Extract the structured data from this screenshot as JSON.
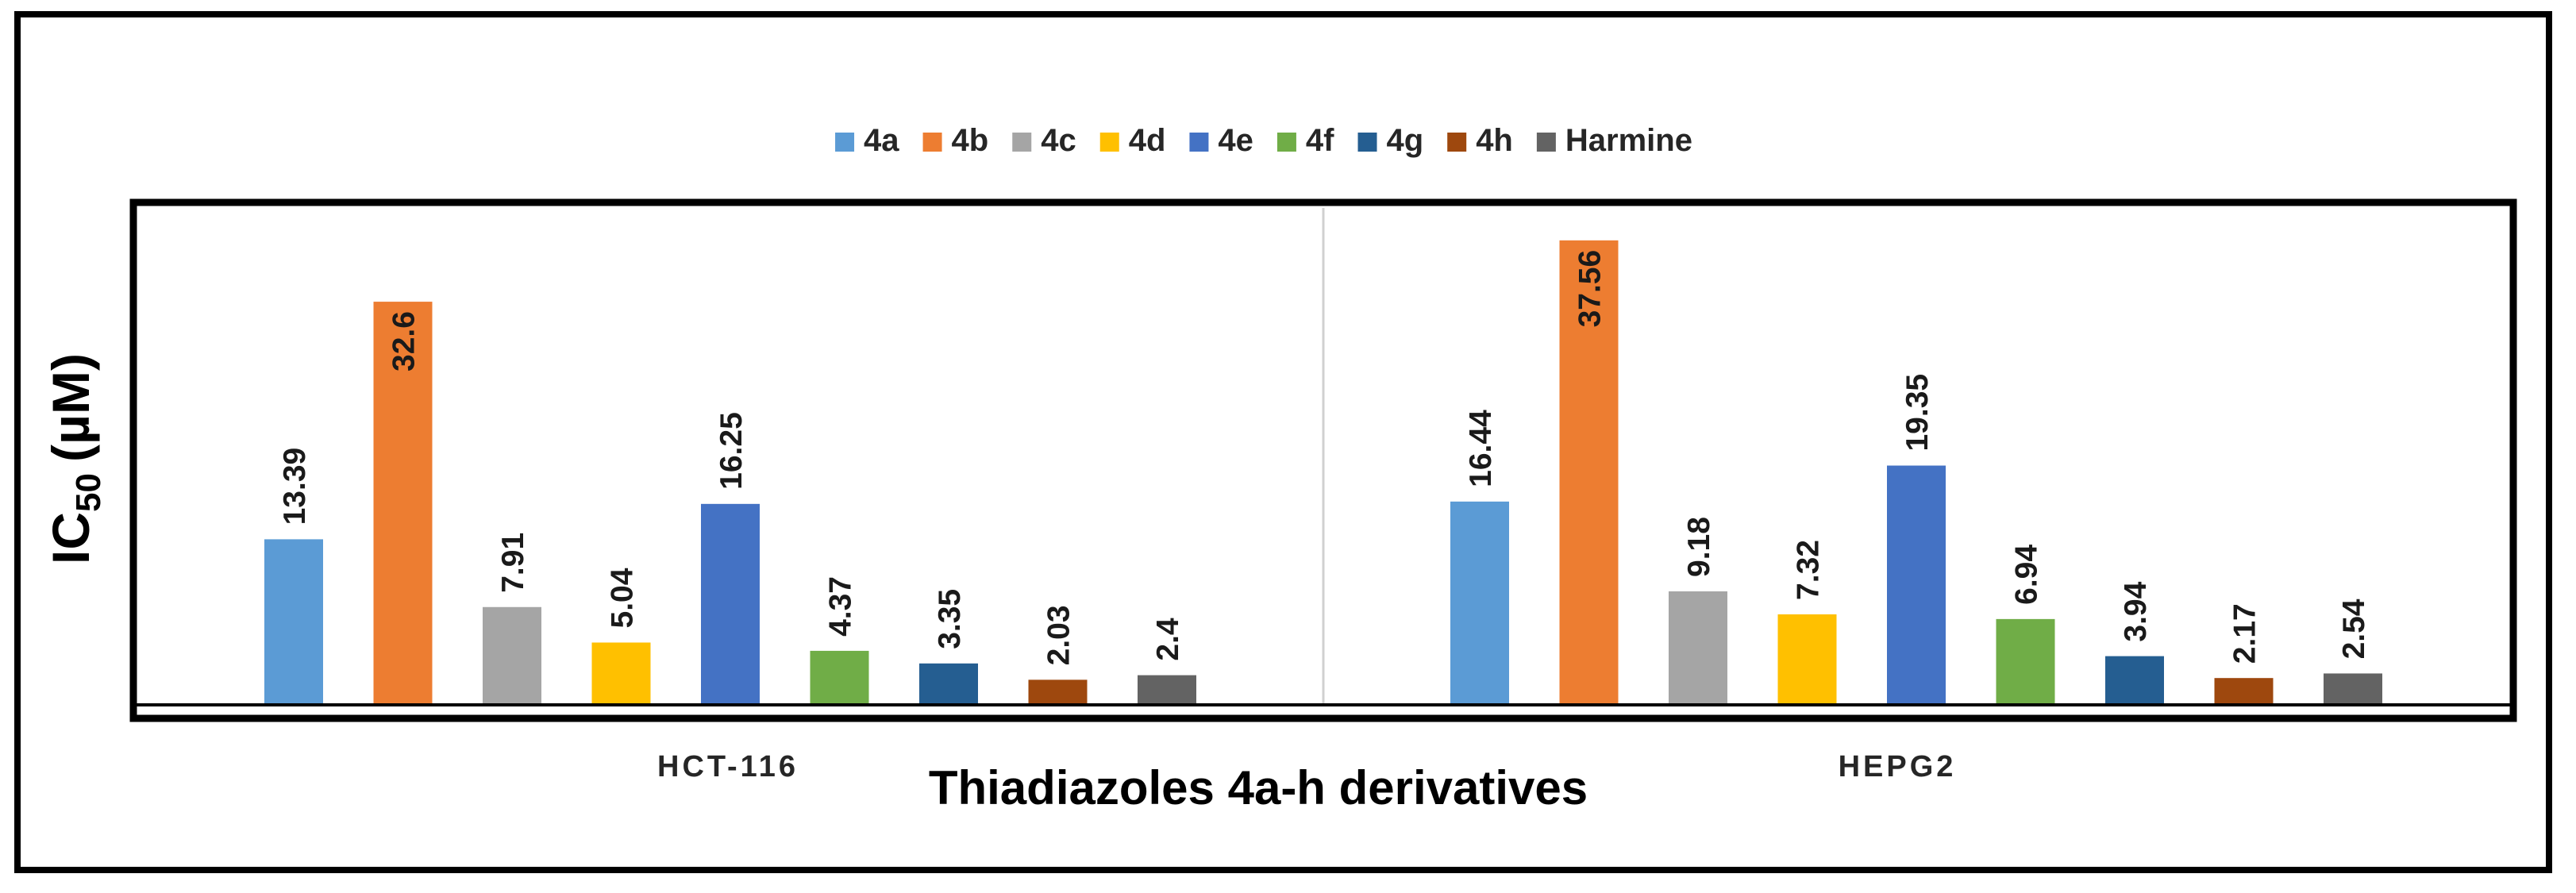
{
  "chart_data": {
    "type": "bar",
    "title": "",
    "xlabel": "Thiadiazoles 4a-h derivatives",
    "ylabel": {
      "main": "IC",
      "sub": "50",
      "unit": "(µM)"
    },
    "ylim": [
      0,
      40
    ],
    "categories": [
      "HCT-116",
      "HEPG2"
    ],
    "legend_position": "top-center",
    "series": [
      {
        "name": "4a",
        "color": "#5b9bd5",
        "values": [
          13.39,
          16.44
        ],
        "labels": [
          "13.39",
          "16.44"
        ]
      },
      {
        "name": "4b",
        "color": "#ed7d31",
        "values": [
          32.6,
          37.56
        ],
        "labels": [
          "32.6",
          "37.56"
        ]
      },
      {
        "name": "4c",
        "color": "#a5a5a5",
        "values": [
          7.91,
          9.18
        ],
        "labels": [
          "7.91",
          "9.18"
        ]
      },
      {
        "name": "4d",
        "color": "#ffc000",
        "values": [
          5.04,
          7.32
        ],
        "labels": [
          "5.04",
          "7.32"
        ]
      },
      {
        "name": "4e",
        "color": "#4472c4",
        "values": [
          16.25,
          19.35
        ],
        "labels": [
          "16.25",
          "19.35"
        ]
      },
      {
        "name": "4f",
        "color": "#70ad47",
        "values": [
          4.37,
          6.94
        ],
        "labels": [
          "4.37",
          "6.94"
        ]
      },
      {
        "name": "4g",
        "color": "#255e91",
        "values": [
          3.35,
          3.94
        ],
        "labels": [
          "3.35",
          "3.94"
        ]
      },
      {
        "name": "4h",
        "color": "#9e480e",
        "values": [
          2.03,
          2.17
        ],
        "labels": [
          "2.03",
          "2.17"
        ]
      },
      {
        "name": "Harmine",
        "color": "#636363",
        "values": [
          2.4,
          2.54
        ],
        "labels": [
          "2.4",
          "2.54"
        ]
      }
    ]
  }
}
